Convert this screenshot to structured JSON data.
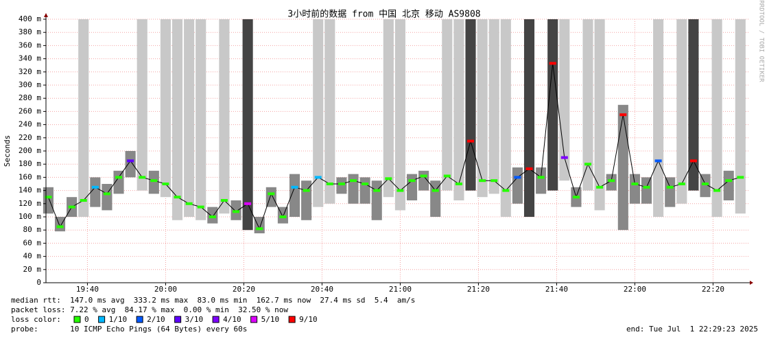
{
  "chart_data": {
    "type": "smokeping",
    "title": "3小时前的数据 from 中国 北京 移动 AS9808",
    "ylabel": "Seconds",
    "side_label": "RRDTOOL / TOBI OETIKER",
    "xlim": [
      1169.4,
      1349.4
    ],
    "ylim": [
      0,
      400
    ],
    "grid": true,
    "xticks": [
      {
        "value": 1180,
        "label": "19:40"
      },
      {
        "value": 1200,
        "label": "20:00"
      },
      {
        "value": 1220,
        "label": "20:20"
      },
      {
        "value": 1240,
        "label": "20:40"
      },
      {
        "value": 1260,
        "label": "21:00"
      },
      {
        "value": 1280,
        "label": "21:20"
      },
      {
        "value": 1300,
        "label": "21:40"
      },
      {
        "value": 1320,
        "label": "22:00"
      },
      {
        "value": 1340,
        "label": "22:20"
      }
    ],
    "yticks": [
      0,
      {
        "value": 20,
        "label": "20 m"
      },
      {
        "value": 40,
        "label": "40 m"
      },
      {
        "value": 60,
        "label": "60 m"
      },
      {
        "value": 80,
        "label": "80 m"
      },
      {
        "value": 100,
        "label": "100 m"
      },
      {
        "value": 120,
        "label": "120 m"
      },
      {
        "value": 140,
        "label": "140 m"
      },
      {
        "value": 160,
        "label": "160 m"
      },
      {
        "value": 180,
        "label": "180 m"
      },
      {
        "value": 200,
        "label": "200 m"
      },
      {
        "value": 220,
        "label": "220 m"
      },
      {
        "value": 240,
        "label": "240 m"
      },
      {
        "value": 260,
        "label": "260 m"
      },
      {
        "value": 280,
        "label": "280 m"
      },
      {
        "value": 300,
        "label": "300 m"
      },
      {
        "value": 320,
        "label": "320 m"
      },
      {
        "value": 340,
        "label": "340 m"
      },
      {
        "value": 360,
        "label": "360 m"
      },
      {
        "value": 380,
        "label": "380 m"
      },
      {
        "value": 400,
        "label": "400 m"
      }
    ],
    "x": [
      1170,
      1173,
      1176,
      1179,
      1182,
      1185,
      1188,
      1191,
      1194,
      1197,
      1200,
      1203,
      1206,
      1209,
      1212,
      1215,
      1218,
      1221,
      1224,
      1227,
      1230,
      1233,
      1236,
      1239,
      1242,
      1245,
      1248,
      1251,
      1254,
      1257,
      1260,
      1263,
      1266,
      1269,
      1272,
      1275,
      1278,
      1281,
      1284,
      1287,
      1290,
      1293,
      1296,
      1299,
      1302,
      1305,
      1308,
      1311,
      1314,
      1317,
      1320,
      1323,
      1326,
      1329,
      1332,
      1335,
      1338,
      1341,
      1344,
      1347
    ],
    "median": [
      130,
      85,
      115,
      125,
      145,
      135,
      160,
      185,
      160,
      155,
      150,
      130,
      120,
      115,
      100,
      125,
      108,
      120,
      82,
      135,
      100,
      145,
      140,
      160,
      150,
      150,
      155,
      150,
      140,
      158,
      140,
      155,
      162,
      140,
      162,
      150,
      215,
      155,
      155,
      140,
      160,
      173,
      160,
      333,
      190,
      130,
      180,
      145,
      155,
      255,
      150,
      145,
      185,
      145,
      150,
      185,
      150,
      140,
      155,
      160
    ],
    "smoke_lo": [
      105,
      78,
      100,
      100,
      115,
      110,
      135,
      160,
      140,
      135,
      130,
      95,
      100,
      95,
      90,
      105,
      95,
      80,
      75,
      115,
      90,
      100,
      95,
      115,
      120,
      135,
      120,
      120,
      95,
      130,
      110,
      125,
      140,
      100,
      140,
      125,
      140,
      130,
      135,
      100,
      120,
      100,
      135,
      140,
      155,
      115,
      140,
      110,
      140,
      80,
      120,
      120,
      100,
      115,
      120,
      140,
      130,
      100,
      125,
      105
    ],
    "smoke_hi": [
      145,
      100,
      130,
      400,
      160,
      150,
      170,
      200,
      400,
      170,
      400,
      400,
      400,
      400,
      115,
      400,
      125,
      400,
      100,
      145,
      115,
      165,
      155,
      400,
      400,
      160,
      165,
      160,
      155,
      400,
      400,
      165,
      170,
      155,
      400,
      400,
      400,
      400,
      400,
      400,
      175,
      400,
      175,
      400,
      400,
      145,
      400,
      400,
      165,
      270,
      165,
      160,
      400,
      160,
      400,
      400,
      165,
      400,
      170,
      400
    ],
    "loss": [
      0,
      0,
      0,
      0,
      1,
      0,
      0,
      3,
      0,
      0,
      0,
      0,
      0,
      0,
      0,
      0,
      0,
      5,
      0,
      0,
      0,
      1,
      0,
      1,
      0,
      0,
      0,
      0,
      0,
      0,
      0,
      0,
      0,
      0,
      0,
      0,
      9,
      0,
      0,
      0,
      2,
      9,
      0,
      9,
      4,
      0,
      0,
      0,
      0,
      9,
      0,
      0,
      2,
      0,
      0,
      9,
      0,
      0,
      0,
      0
    ],
    "loss_legend": {
      "title": "loss color:",
      "items": [
        {
          "value": 0,
          "label": "0",
          "color": "#26ff00"
        },
        {
          "value": 1,
          "label": "1/10",
          "color": "#00b8ff"
        },
        {
          "value": 2,
          "label": "2/10",
          "color": "#0059ff"
        },
        {
          "value": 3,
          "label": "3/10",
          "color": "#5e00ff"
        },
        {
          "value": 4,
          "label": "4/10",
          "color": "#7e00ff"
        },
        {
          "value": 5,
          "label": "5/10",
          "color": "#dd00ff"
        },
        {
          "value": 9,
          "label": "9/10",
          "color": "#ff0000"
        }
      ]
    },
    "stats": [
      "median rtt:  147.0 ms avg  333.2 ms max  83.0 ms min  162.7 ms now  27.4 ms sd  5.4  am/s",
      "packet loss: 7.22 % avg  84.17 % max  0.00 % min  32.50 % now"
    ],
    "probe": "probe:       10 ICMP Echo Pings (64 Bytes) every 60s",
    "end": "end: Tue Jul  1 22:29:23 2025"
  }
}
